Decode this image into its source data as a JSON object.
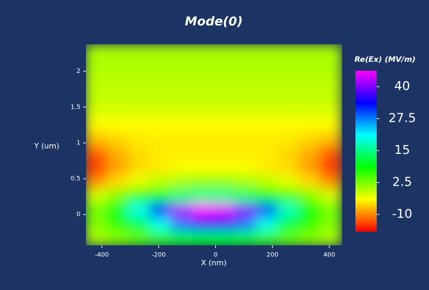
{
  "chart_data": {
    "type": "heatmap",
    "title": "Mode(0)",
    "x_label": "X (nm)",
    "y_label": "Y (um)",
    "colorbar_title": "Re(Ex) (MV/m)",
    "x": [
      -420,
      -345,
      -270,
      -195,
      -120,
      -45,
      30,
      105,
      180,
      255,
      330,
      405
    ],
    "y": [
      -0.33,
      -0.13,
      0.07,
      0.27,
      0.47,
      0.67,
      0.87,
      1.07,
      1.27,
      1.47,
      1.67,
      1.87,
      2.07,
      2.27
    ],
    "z": [
      [
        0,
        2,
        4,
        6,
        8,
        9,
        9,
        8,
        6,
        4,
        2,
        0
      ],
      [
        2,
        6,
        12,
        20,
        28,
        32,
        32,
        28,
        20,
        12,
        6,
        2
      ],
      [
        3,
        10,
        20,
        32,
        42,
        46,
        45,
        40,
        30,
        18,
        9,
        3
      ],
      [
        -2,
        2,
        6,
        10,
        14,
        15,
        15,
        13,
        9,
        5,
        2,
        -2
      ],
      [
        -10,
        -6,
        -3,
        -1,
        0,
        1,
        1,
        0,
        -1,
        -3,
        -6,
        -10
      ],
      [
        -14,
        -9,
        -6,
        -5,
        -4,
        -4,
        -4,
        -4,
        -5,
        -6,
        -9,
        -14
      ],
      [
        -12,
        -8,
        -6,
        -5,
        -5,
        -5,
        -5,
        -5,
        -5,
        -6,
        -8,
        -12
      ],
      [
        -7,
        -6,
        -5,
        -5,
        -5,
        -5,
        -5,
        -5,
        -5,
        -5,
        -6,
        -7
      ],
      [
        -4,
        -4,
        -4,
        -4,
        -4,
        -4,
        -4,
        -4,
        -4,
        -4,
        -4,
        -4
      ],
      [
        -2,
        -2,
        -2,
        -2,
        -2,
        -2,
        -2,
        -2,
        -2,
        -2,
        -2,
        -2
      ],
      [
        -1,
        -1,
        -1,
        -1,
        -1,
        -1,
        -1,
        -1,
        -1,
        -1,
        -1,
        -1
      ],
      [
        -1,
        -1,
        -1,
        -1,
        -1,
        -1,
        -1,
        -1,
        -1,
        -1,
        -1,
        -1
      ],
      [
        0,
        0,
        0,
        0,
        0,
        0,
        0,
        0,
        0,
        0,
        0,
        0
      ],
      [
        0,
        0,
        0,
        0,
        0,
        0,
        0,
        0,
        0,
        0,
        0,
        0
      ]
    ],
    "xlim": [
      -456,
      446
    ],
    "ylim": [
      -0.43,
      2.39
    ],
    "xticks": [
      -400,
      -200,
      0,
      200,
      400
    ],
    "yticks": [
      0,
      0.5,
      1,
      1.5,
      2
    ],
    "zlim": [
      -16.7,
      46.2
    ],
    "zticks": [
      40,
      27.5,
      15,
      2.5,
      -10
    ],
    "colormap": [
      "#ff0000",
      "#ffff00",
      "#00ff00",
      "#00ffff",
      "#0000ff",
      "#ff00ff"
    ]
  }
}
